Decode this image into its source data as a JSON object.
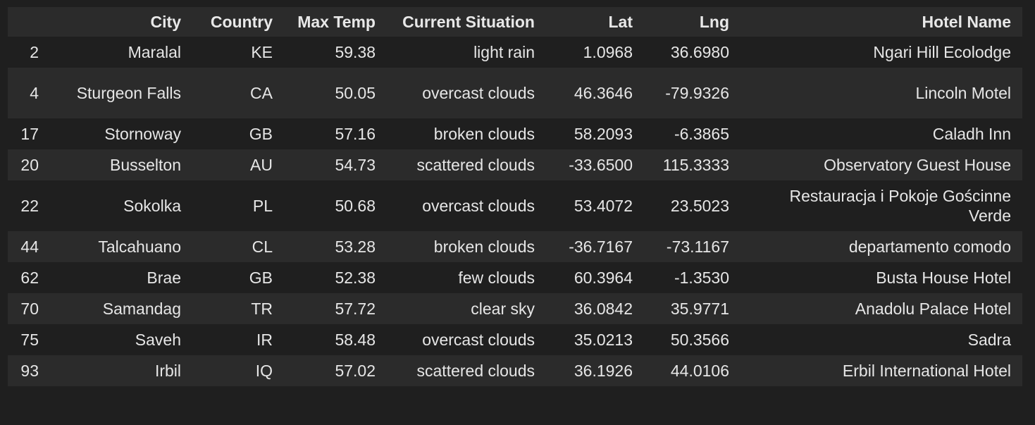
{
  "table": {
    "columns": [
      "",
      "City",
      "Country",
      "Max Temp",
      "Current Situation",
      "Lat",
      "Lng",
      "Hotel Name"
    ],
    "rows": [
      [
        "2",
        "Maralal",
        "KE",
        "59.38",
        "light rain",
        "1.0968",
        "36.6980",
        "Ngari Hill Ecolodge"
      ],
      [
        "4",
        "Sturgeon Falls",
        "CA",
        "50.05",
        "overcast clouds",
        "46.3646",
        "-79.9326",
        "Lincoln Motel"
      ],
      [
        "17",
        "Stornoway",
        "GB",
        "57.16",
        "broken clouds",
        "58.2093",
        "-6.3865",
        "Caladh Inn"
      ],
      [
        "20",
        "Busselton",
        "AU",
        "54.73",
        "scattered clouds",
        "-33.6500",
        "115.3333",
        "Observatory Guest House"
      ],
      [
        "22",
        "Sokolka",
        "PL",
        "50.68",
        "overcast clouds",
        "53.4072",
        "23.5023",
        "Restauracja i Pokoje Gościnne Verde"
      ],
      [
        "44",
        "Talcahuano",
        "CL",
        "53.28",
        "broken clouds",
        "-36.7167",
        "-73.1167",
        "departamento comodo"
      ],
      [
        "62",
        "Brae",
        "GB",
        "52.38",
        "few clouds",
        "60.3964",
        "-1.3530",
        "Busta House Hotel"
      ],
      [
        "70",
        "Samandag",
        "TR",
        "57.72",
        "clear sky",
        "36.0842",
        "35.9771",
        "Anadolu Palace Hotel"
      ],
      [
        "75",
        "Saveh",
        "IR",
        "58.48",
        "overcast clouds",
        "35.0213",
        "50.3566",
        "Sadra"
      ],
      [
        "93",
        "Irbil",
        "IQ",
        "57.02",
        "scattered clouds",
        "36.1926",
        "44.0106",
        "Erbil International Hotel"
      ]
    ]
  }
}
